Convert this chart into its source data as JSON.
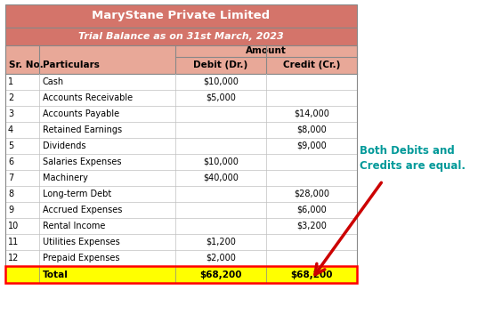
{
  "title": "MaryStane Private Limited",
  "subtitle": "Trial Balance as on 31st March, 2023",
  "header_bg": "#D4746A",
  "header_text_color": "#FFFFFF",
  "col_header_bg": "#E8A898",
  "row_bg_white": "#FFFFFF",
  "total_row_bg": "#FFFF00",
  "total_row_border": "#FF0000",
  "grid_color": "#AAAAAA",
  "columns": [
    "Sr. No.",
    "Particulars",
    "Debit (Dr.)",
    "Credit (Cr.)"
  ],
  "amount_header": "Amount",
  "rows": [
    [
      "1",
      "Cash",
      "$10,000",
      ""
    ],
    [
      "2",
      "Accounts Receivable",
      "$5,000",
      ""
    ],
    [
      "3",
      "Accounts Payable",
      "",
      "$14,000"
    ],
    [
      "4",
      "Retained Earnings",
      "",
      "$8,000"
    ],
    [
      "5",
      "Dividends",
      "",
      "$9,000"
    ],
    [
      "6",
      "Salaries Expenses",
      "$10,000",
      ""
    ],
    [
      "7",
      "Machinery",
      "$40,000",
      ""
    ],
    [
      "8",
      "Long-term Debt",
      "",
      "$28,000"
    ],
    [
      "9",
      "Accrued Expenses",
      "",
      "$6,000"
    ],
    [
      "10",
      "Rental Income",
      "",
      "$3,200"
    ],
    [
      "11",
      "Utilities Expenses",
      "$1,200",
      ""
    ],
    [
      "12",
      "Prepaid Expenses",
      "$2,000",
      ""
    ]
  ],
  "total_row": [
    "",
    "Total",
    "$68,200",
    "$68,200"
  ],
  "annotation_text": "Both Debits and\nCredits are equal.",
  "annotation_color": "#009999",
  "arrow_color": "#CC0000",
  "fig_width": 5.46,
  "fig_height": 3.63,
  "dpi": 100
}
